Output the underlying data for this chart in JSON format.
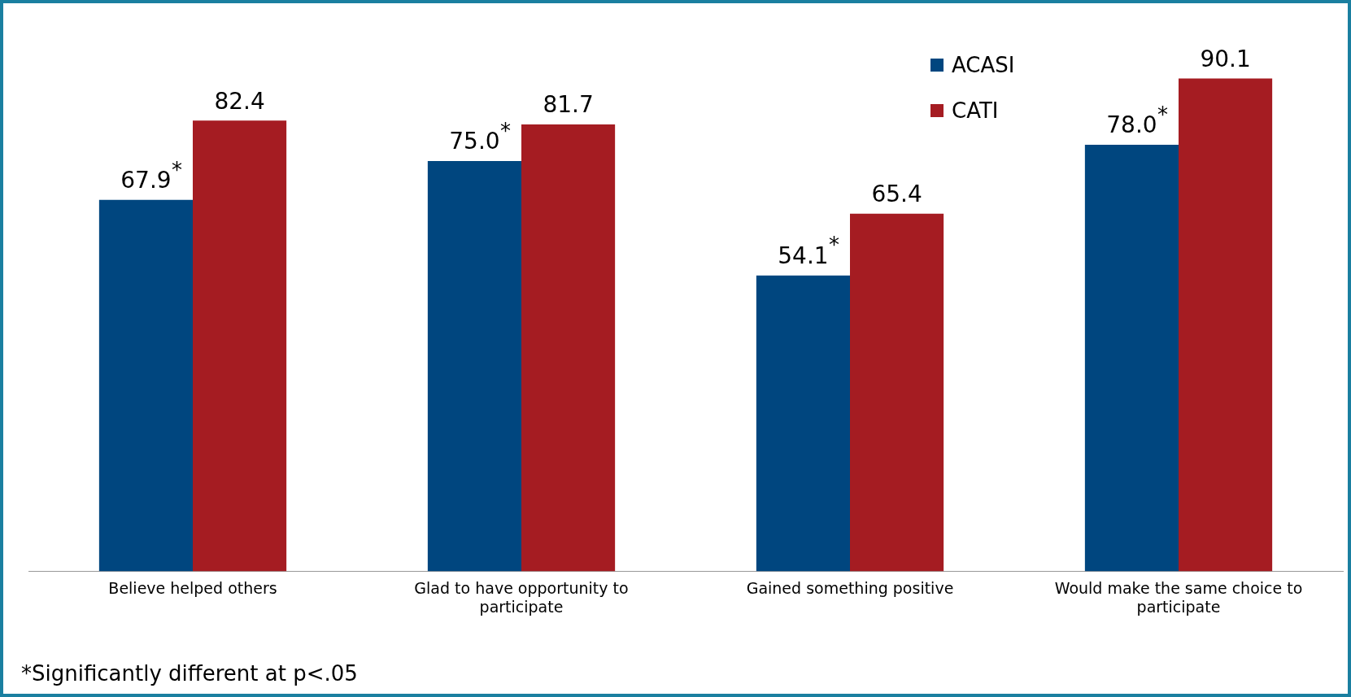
{
  "chart_data": {
    "type": "bar",
    "categories": [
      "Believe helped others",
      "Glad to have opportunity to participate",
      "Gained something positive",
      "Would make the same choice to participate"
    ],
    "series": [
      {
        "name": "ACASI",
        "color": "#00467f",
        "values": [
          67.9,
          75.0,
          54.1,
          78.0
        ],
        "value_labels": [
          "67.9",
          "75.0",
          "54.1",
          "78.0"
        ]
      },
      {
        "name": "CATI",
        "color": "#a51c22",
        "values": [
          82.4,
          81.7,
          65.4,
          90.1
        ],
        "value_labels": [
          "82.4",
          "81.7",
          "65.4",
          "90.1"
        ]
      }
    ],
    "legend": "top right",
    "grid": false,
    "annotations": [
      {
        "text": "*",
        "x": "Believe helped others",
        "y": 67.9
      },
      {
        "text": "*",
        "x": "Glad to have opportunity to participate",
        "y": 75.0
      },
      {
        "text": "*",
        "x": "Gained something positive",
        "y": 54.1
      },
      {
        "text": "*",
        "x": "Would make the same choice to participate",
        "y": 78.0
      },
      "*Significantly different at p<.05"
    ]
  }
}
